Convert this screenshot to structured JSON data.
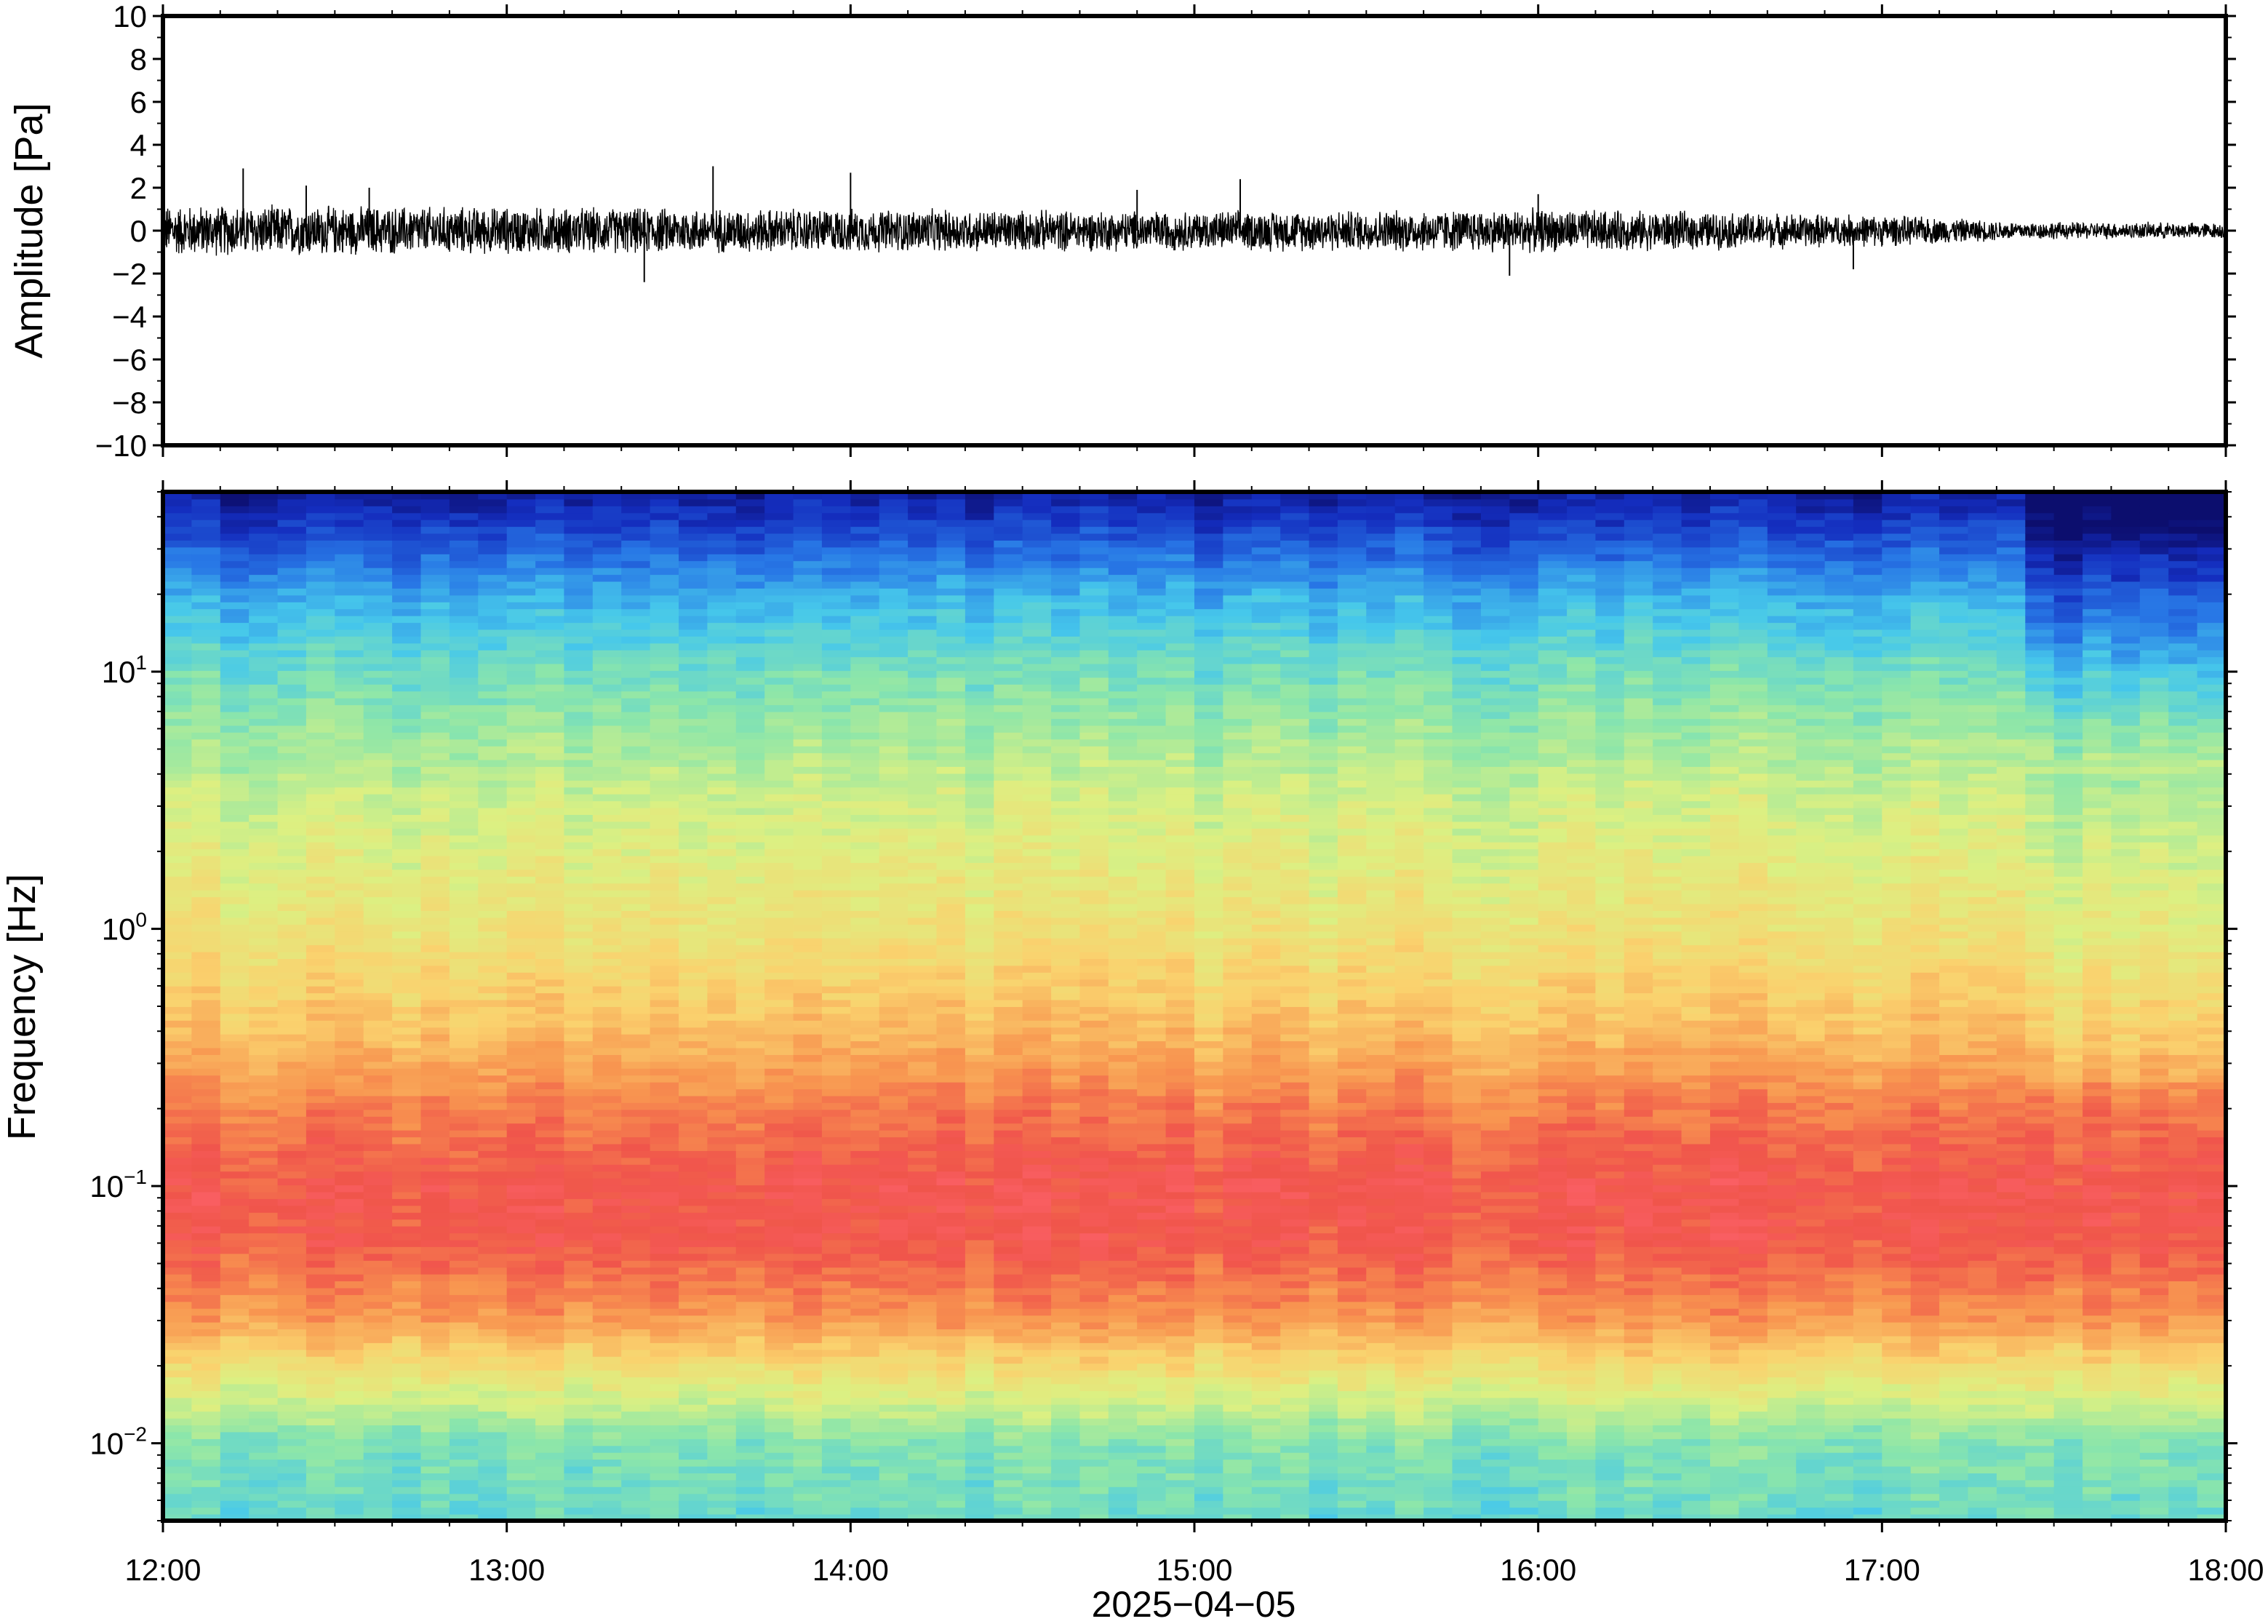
{
  "chart_data": [
    {
      "type": "line",
      "panel": "waveform",
      "ylabel": "Amplitude [Pa]",
      "ylim": [
        -10,
        10
      ],
      "y_ticks": [
        "10",
        "8",
        "6",
        "4",
        "2",
        "0",
        "−2",
        "−4",
        "−6",
        "−8",
        "−10"
      ],
      "x_range": [
        "12:00",
        "18:00"
      ],
      "series": [
        {
          "noise_envelope": [
            {
              "time": "12:00",
              "amplitude": 1.3
            },
            {
              "time": "13:00",
              "amplitude": 1.2
            },
            {
              "time": "14:00",
              "amplitude": 1.1
            },
            {
              "time": "15:00",
              "amplitude": 1.0
            },
            {
              "time": "16:00",
              "amplitude": 1.1
            },
            {
              "time": "17:00",
              "amplitude": 0.8
            },
            {
              "time": "17:25",
              "amplitude": 0.45
            },
            {
              "time": "18:00",
              "amplitude": 0.4
            }
          ],
          "spikes": [
            {
              "time": "12:14",
              "value": 2.9
            },
            {
              "time": "12:25",
              "value": 2.1
            },
            {
              "time": "12:36",
              "value": 2.0
            },
            {
              "time": "13:24",
              "value": -2.4
            },
            {
              "time": "13:36",
              "value": 3.0
            },
            {
              "time": "14:00",
              "value": 2.7
            },
            {
              "time": "14:50",
              "value": 1.9
            },
            {
              "time": "15:08",
              "value": 2.4
            },
            {
              "time": "15:55",
              "value": -2.1
            },
            {
              "time": "16:00",
              "value": 1.7
            },
            {
              "time": "16:55",
              "value": -1.8
            }
          ]
        }
      ],
      "line_color": "#000000"
    },
    {
      "type": "heatmap",
      "panel": "spectrogram",
      "ylabel": "Frequency [Hz]",
      "y_scale": "log",
      "ylim_hz": [
        0.005,
        50
      ],
      "y_ticks": [
        {
          "value": 10,
          "base": "10",
          "exp": "1"
        },
        {
          "value": 1,
          "base": "10",
          "exp": "0"
        },
        {
          "value": 0.1,
          "base": "10",
          "exp": "−1"
        },
        {
          "value": 0.01,
          "base": "10",
          "exp": "−2"
        }
      ],
      "x_ticks": [
        "12:00",
        "13:00",
        "14:00",
        "15:00",
        "16:00",
        "17:00",
        "18:00"
      ],
      "xlabel": "2025−04−05",
      "colormap": "jet-like (blue = low power, red = high power)",
      "description_levels": [
        {
          "freq_hz": 40,
          "level": "dark blue"
        },
        {
          "freq_hz": 10,
          "level": "cyan / light blue"
        },
        {
          "freq_hz": 1,
          "level": "yellow"
        },
        {
          "freq_hz": 0.1,
          "level": "red (peak)"
        },
        {
          "freq_hz": 0.01,
          "level": "cyan-green"
        }
      ],
      "after_17_25": "higher frequencies drop to darker blue"
    }
  ]
}
